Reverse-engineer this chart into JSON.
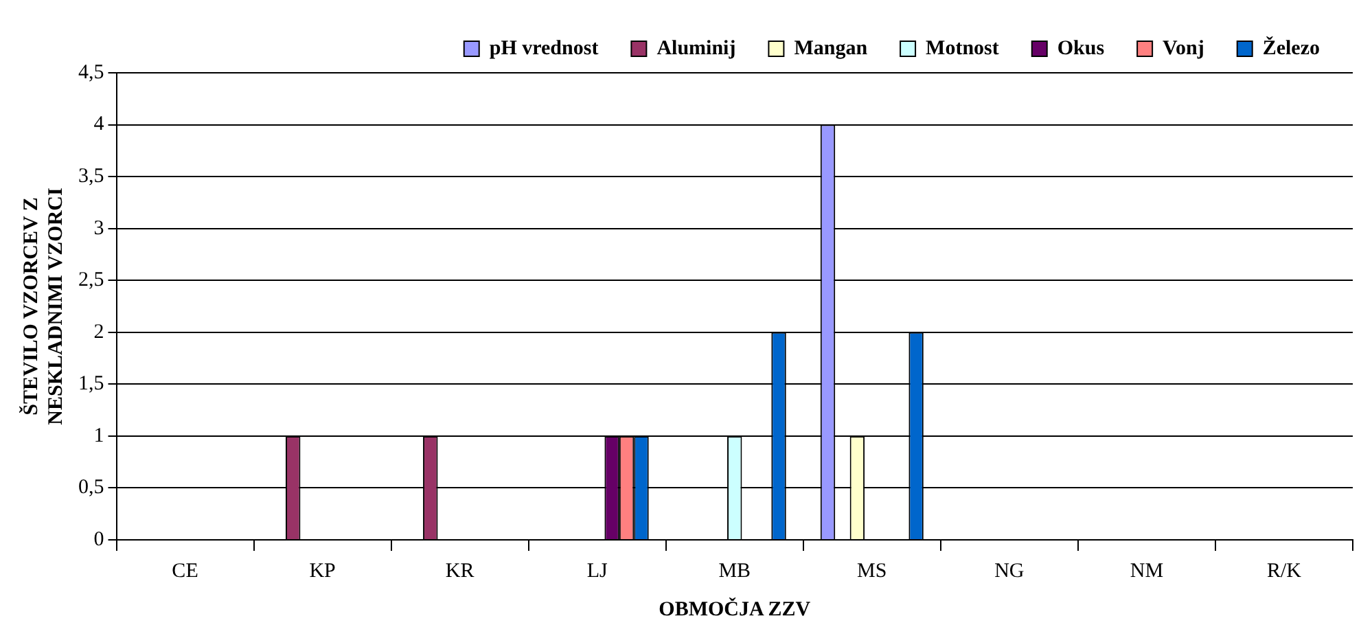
{
  "chart_data": {
    "type": "bar",
    "xlabel": "OBMOČJA ZZV",
    "ylabel": "ŠTEVILO VZORCEV Z NESKLADNIMI VZORCI",
    "categories": [
      "CE",
      "KP",
      "KR",
      "LJ",
      "MB",
      "MS",
      "NG",
      "NM",
      "R/K"
    ],
    "series": [
      {
        "name": "pH vrednost",
        "color": "#9999ff",
        "values": [
          0,
          0,
          0,
          0,
          0,
          4,
          0,
          0,
          0
        ]
      },
      {
        "name": "Aluminij",
        "color": "#993366",
        "values": [
          0,
          1,
          1,
          0,
          0,
          0,
          0,
          0,
          0
        ]
      },
      {
        "name": "Mangan",
        "color": "#ffffcc",
        "values": [
          0,
          0,
          0,
          0,
          0,
          1,
          0,
          0,
          0
        ]
      },
      {
        "name": "Motnost",
        "color": "#ccffff",
        "values": [
          0,
          0,
          0,
          0,
          1,
          0,
          0,
          0,
          0
        ]
      },
      {
        "name": "Okus",
        "color": "#660066",
        "values": [
          0,
          0,
          0,
          1,
          0,
          0,
          0,
          0,
          0
        ]
      },
      {
        "name": "Vonj",
        "color": "#ff8080",
        "values": [
          0,
          0,
          0,
          1,
          0,
          0,
          0,
          0,
          0
        ]
      },
      {
        "name": "Železo",
        "color": "#0066cc",
        "values": [
          0,
          0,
          0,
          1,
          2,
          2,
          0,
          0,
          0
        ]
      }
    ],
    "ylim": [
      0,
      4.5
    ],
    "yticks": [
      0,
      {
        "value": 0.5,
        "label": "0,5"
      },
      1,
      {
        "value": 1.5,
        "label": "1,5"
      },
      2,
      {
        "value": 2.5,
        "label": "2,5"
      },
      3,
      {
        "value": 3.5,
        "label": "3,5"
      },
      4,
      {
        "value": 4.5,
        "label": "4,5"
      }
    ],
    "grid": "y",
    "legend": "top"
  }
}
